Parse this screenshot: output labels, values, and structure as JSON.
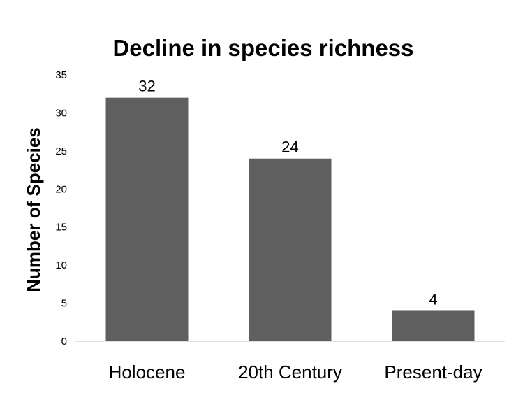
{
  "chart_data": {
    "type": "bar",
    "title": "Decline in species richness",
    "xlabel": "",
    "ylabel": "Number of Species",
    "categories": [
      "Holocene",
      "20th Century",
      "Present-day"
    ],
    "values": [
      32,
      24,
      4
    ],
    "data_labels": [
      "32",
      "24",
      "4"
    ],
    "ylim": [
      0,
      35
    ],
    "yticks": [
      0,
      5,
      10,
      15,
      20,
      25,
      30,
      35
    ],
    "grid": false,
    "legend": "none",
    "bar_color": "#5f5f5f"
  }
}
